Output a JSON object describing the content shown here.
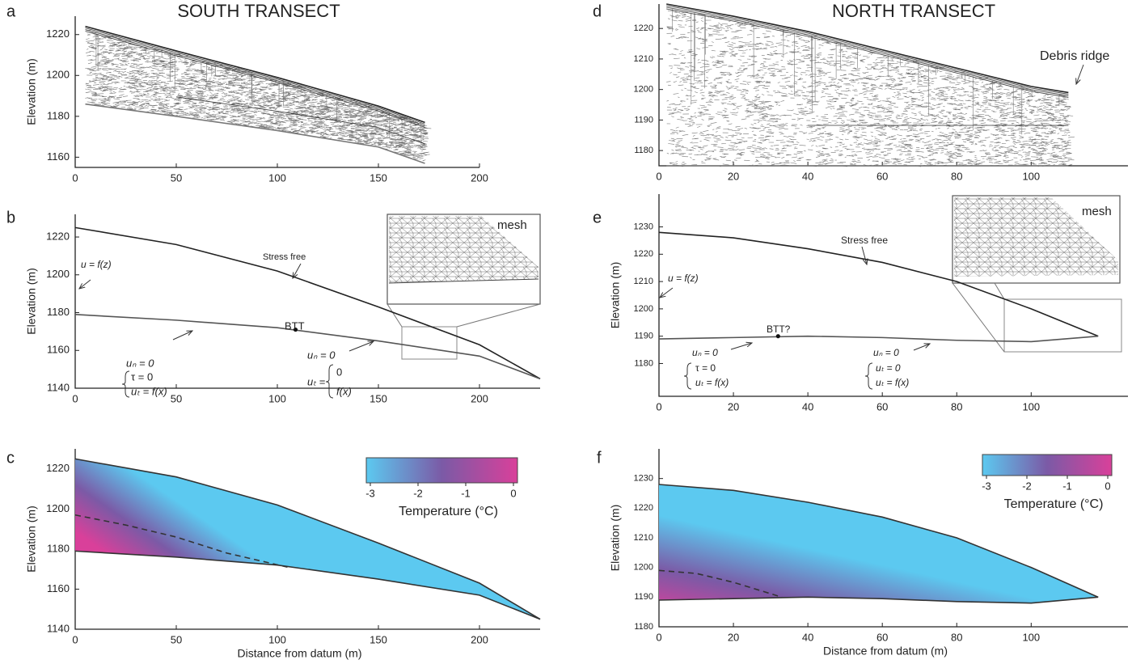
{
  "chart_data": [
    {
      "panel": "a",
      "type": "radargram",
      "title": "SOUTH TRANSECT",
      "ylabel": "Elevation (m)",
      "xlim": [
        0,
        200
      ],
      "xticks": [
        0,
        50,
        100,
        150,
        200
      ],
      "ylim": [
        1155,
        1229
      ],
      "yticks": [
        1160,
        1180,
        1200,
        1220
      ],
      "lines": [
        {
          "x": [
            5,
            50,
            100,
            150,
            173
          ],
          "values": [
            1224,
            1212,
            1199,
            1185,
            1177
          ],
          "color": "#222222"
        },
        {
          "x": [
            5,
            50,
            100,
            150,
            173
          ],
          "values": [
            1186,
            1180,
            1173,
            1165,
            1157
          ],
          "color": "#777777"
        }
      ]
    },
    {
      "panel": "b",
      "type": "line",
      "ylabel": "Elevation (m)",
      "xlim": [
        0,
        230
      ],
      "xticks": [
        0,
        50,
        100,
        150,
        200
      ],
      "ylim": [
        1140,
        1232
      ],
      "yticks": [
        1140,
        1160,
        1180,
        1200,
        1220
      ],
      "lines": [
        {
          "x": [
            0,
            50,
            100,
            150,
            200,
            230
          ],
          "values": [
            1225,
            1216,
            1202,
            1183,
            1163,
            1145
          ],
          "color": "#222222"
        },
        {
          "x": [
            0,
            50,
            100,
            150,
            200,
            230
          ],
          "values": [
            1179,
            1176,
            1172,
            1165,
            1157,
            1145
          ],
          "color": "#555555"
        }
      ],
      "btt": {
        "x": 109,
        "y": 1171
      },
      "annotations": [
        "Stress free",
        "u = f(z)",
        "BTT",
        "uₙ = 0",
        "τ = 0",
        "uₜ = f(x)",
        "uₙ = 0",
        "uₜ =",
        "0",
        "f(x)",
        "mesh"
      ]
    },
    {
      "panel": "c",
      "type": "temperature",
      "ylabel": "Elevation (m)",
      "xlabel": "Distance from datum (m)",
      "xlim": [
        0,
        230
      ],
      "xticks": [
        0,
        50,
        100,
        150,
        200
      ],
      "ylim": [
        1140,
        1230
      ],
      "yticks": [
        1140,
        1160,
        1180,
        1200,
        1220
      ],
      "lines": [
        {
          "x": [
            0,
            50,
            100,
            150,
            200,
            230
          ],
          "values": [
            1225,
            1216,
            1202,
            1183,
            1163,
            1145
          ],
          "color": "#333333"
        },
        {
          "x": [
            0,
            50,
            100,
            150,
            200,
            230
          ],
          "values": [
            1179,
            1176,
            1172,
            1165,
            1157,
            1145
          ],
          "color": "#333333"
        },
        {
          "x": [
            0,
            25,
            50,
            75,
            105
          ],
          "values": [
            1197,
            1192,
            1186,
            1178,
            1171
          ],
          "color": "#333333",
          "dashed": true
        }
      ],
      "colorbar": {
        "lim": [
          -3,
          0
        ],
        "ticks": [
          -3,
          -2,
          -1,
          0
        ],
        "label": "Temperature (°C)",
        "colors": [
          "#5cc9f0",
          "#7b5aa6",
          "#d9409a"
        ]
      }
    },
    {
      "panel": "d",
      "type": "radargram",
      "title": "NORTH TRANSECT",
      "xlim": [
        0,
        126
      ],
      "xticks": [
        0,
        20,
        40,
        60,
        80,
        100
      ],
      "ylim": [
        1175,
        1228
      ],
      "yticks": [
        1180,
        1190,
        1200,
        1210,
        1220
      ],
      "lines": [
        {
          "x": [
            2,
            20,
            40,
            60,
            80,
            100,
            110
          ],
          "values": [
            1228,
            1224,
            1219,
            1213,
            1207,
            1201,
            1199
          ],
          "color": "#222222"
        },
        {
          "x": [
            2,
            20,
            40,
            60,
            80,
            100,
            110
          ],
          "values": [
            1175,
            1175,
            1175,
            1175,
            1175,
            1175,
            1175
          ],
          "color": "#777777"
        }
      ],
      "annotations": [
        "Debris ridge"
      ]
    },
    {
      "panel": "e",
      "type": "line",
      "ylabel": "Elevation (m)",
      "xlim": [
        0,
        126
      ],
      "xticks": [
        0,
        20,
        40,
        60,
        80,
        100
      ],
      "ylim": [
        1168,
        1242
      ],
      "yticks": [
        1180,
        1190,
        1200,
        1210,
        1220,
        1230
      ],
      "lines": [
        {
          "x": [
            0,
            20,
            40,
            60,
            80,
            100,
            118
          ],
          "values": [
            1228,
            1226,
            1222,
            1217,
            1210,
            1200,
            1190
          ],
          "color": "#222222"
        },
        {
          "x": [
            0,
            20,
            40,
            60,
            80,
            100,
            118
          ],
          "values": [
            1189,
            1189.5,
            1190,
            1189.5,
            1188.5,
            1188,
            1190
          ],
          "color": "#555555"
        }
      ],
      "btt": {
        "x": 32,
        "y": 1190
      },
      "annotations": [
        "Stress free",
        "u = f(z)",
        "BTT?",
        "uₙ = 0",
        "τ = 0",
        "uₜ = f(x)",
        "uₙ = 0",
        "uₜ = 0",
        "uₜ = f(x)",
        "mesh"
      ]
    },
    {
      "panel": "f",
      "type": "temperature",
      "ylabel": "Elevation (m)",
      "xlabel": "Distance from datum (m)",
      "xlim": [
        0,
        126
      ],
      "xticks": [
        0,
        20,
        40,
        60,
        80,
        100
      ],
      "ylim": [
        1180,
        1240
      ],
      "yticks": [
        1180,
        1190,
        1200,
        1210,
        1220,
        1230
      ],
      "lines": [
        {
          "x": [
            0,
            20,
            40,
            60,
            80,
            100,
            118
          ],
          "values": [
            1228,
            1226,
            1222,
            1217,
            1210,
            1200,
            1190
          ],
          "color": "#333333"
        },
        {
          "x": [
            0,
            20,
            40,
            60,
            80,
            100,
            118
          ],
          "values": [
            1189,
            1189.5,
            1190,
            1189.5,
            1188.5,
            1188,
            1190
          ],
          "color": "#333333"
        },
        {
          "x": [
            0,
            10,
            20,
            33
          ],
          "values": [
            1199,
            1198,
            1195,
            1190
          ],
          "color": "#333333",
          "dashed": true
        }
      ],
      "colorbar": {
        "lim": [
          -3,
          0
        ],
        "ticks": [
          -3,
          -2,
          -1,
          0
        ],
        "label": "Temperature (°C)",
        "colors": [
          "#5cc9f0",
          "#7b5aa6",
          "#d9409a"
        ]
      }
    }
  ]
}
